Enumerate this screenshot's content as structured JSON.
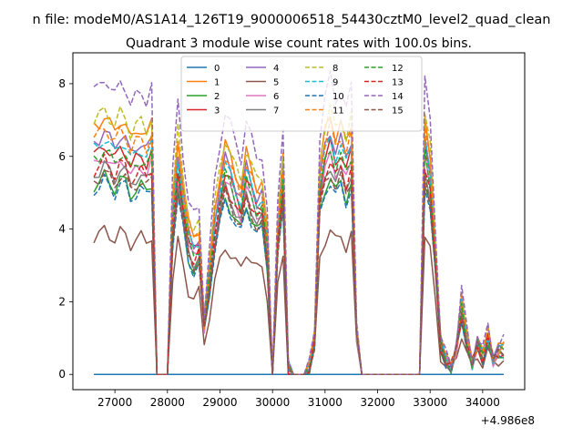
{
  "figure": {
    "suptitle": "n file: modeM0/AS1A14_126T19_9000006518_54430cztM0_level2_quad_clean",
    "offset_label": "+4.986e8"
  },
  "chart_data": {
    "type": "line",
    "title": "Quadrant 3 module wise count rates with 100.0s bins.",
    "xlabel": "",
    "ylabel": "",
    "xlim": [
      26200,
      34800
    ],
    "ylim": [
      -0.42,
      8.85
    ],
    "x_offset": 498600000,
    "x_ticks": [
      27000,
      28000,
      29000,
      30000,
      31000,
      32000,
      33000,
      34000
    ],
    "x_tick_labels": [
      "27000",
      "28000",
      "29000",
      "30000",
      "31000",
      "32000",
      "33000",
      "34000"
    ],
    "y_ticks": [
      0,
      2,
      4,
      6,
      8
    ],
    "y_tick_labels": [
      "0",
      "2",
      "4",
      "6",
      "8"
    ],
    "grid": false,
    "legend": {
      "placement": "upper center",
      "columns": 4
    },
    "x": [
      26600,
      26700,
      26800,
      26900,
      27000,
      27100,
      27200,
      27300,
      27400,
      27500,
      27600,
      27700,
      27800,
      27900,
      28000,
      28100,
      28200,
      28300,
      28400,
      28500,
      28600,
      28700,
      28800,
      28900,
      29000,
      29100,
      29200,
      29300,
      29400,
      29500,
      29600,
      29700,
      29800,
      29900,
      30000,
      30100,
      30200,
      30300,
      30400,
      30500,
      30600,
      30700,
      30800,
      30900,
      31000,
      31100,
      31200,
      31300,
      31400,
      31500,
      31600,
      31700,
      31800,
      31900,
      32000,
      32100,
      32200,
      32300,
      32400,
      32500,
      32600,
      32700,
      32800,
      32900,
      33000,
      33100,
      33200,
      33300,
      33400,
      33500,
      33600,
      33700,
      33800,
      33900,
      34000,
      34100,
      34200,
      34300,
      34400
    ],
    "base_profile": [
      5.9,
      6.0,
      6.2,
      6.0,
      5.8,
      6.1,
      6.0,
      5.6,
      5.8,
      5.9,
      5.7,
      6.0,
      0.0,
      0.0,
      0.0,
      4.2,
      5.7,
      4.6,
      3.6,
      3.3,
      3.5,
      1.3,
      2.6,
      4.0,
      4.8,
      5.5,
      5.2,
      4.8,
      4.5,
      5.3,
      4.9,
      4.5,
      4.6,
      3.4,
      0.0,
      3.7,
      5.2,
      0.2,
      0.0,
      0.0,
      0.0,
      0.2,
      0.9,
      5.0,
      5.8,
      6.2,
      5.7,
      6.0,
      5.5,
      6.0,
      1.2,
      0.0,
      0.0,
      0.0,
      0.0,
      0.0,
      0.0,
      0.0,
      0.0,
      0.0,
      0.0,
      0.0,
      0.0,
      6.1,
      5.3,
      3.1,
      0.8,
      0.4,
      0.2,
      0.7,
      1.8,
      0.9,
      0.3,
      0.8,
      0.5,
      1.0,
      0.4,
      0.6,
      0.7
    ],
    "series": [
      {
        "name": "0",
        "color": "#1f77b4",
        "dash": false,
        "scale": 0.0
      },
      {
        "name": "1",
        "color": "#ff7f0e",
        "dash": false,
        "scale": 1.15
      },
      {
        "name": "2",
        "color": "#2ca02c",
        "dash": false,
        "scale": 0.88
      },
      {
        "name": "3",
        "color": "#d62728",
        "dash": false,
        "scale": 1.02
      },
      {
        "name": "4",
        "color": "#9467bd",
        "dash": false,
        "scale": 1.08
      },
      {
        "name": "5",
        "color": "#8c564b",
        "dash": false,
        "scale": 0.64
      },
      {
        "name": "6",
        "color": "#e377c2",
        "dash": false,
        "scale": 0.97
      },
      {
        "name": "7",
        "color": "#7f7f7f",
        "dash": false,
        "scale": 0.93
      },
      {
        "name": "8",
        "color": "#bcbd22",
        "dash": true,
        "scale": 1.18
      },
      {
        "name": "9",
        "color": "#17becf",
        "dash": true,
        "scale": 1.05
      },
      {
        "name": "10",
        "color": "#1f77b4",
        "dash": true,
        "scale": 0.86
      },
      {
        "name": "11",
        "color": "#ff7f0e",
        "dash": true,
        "scale": 1.1
      },
      {
        "name": "12",
        "color": "#2ca02c",
        "dash": true,
        "scale": 1.0
      },
      {
        "name": "13",
        "color": "#d62728",
        "dash": true,
        "scale": 0.95
      },
      {
        "name": "14",
        "color": "#9467bd",
        "dash": true,
        "scale": 1.32
      },
      {
        "name": "15",
        "color": "#8c564b",
        "dash": true,
        "scale": 0.9
      }
    ]
  }
}
